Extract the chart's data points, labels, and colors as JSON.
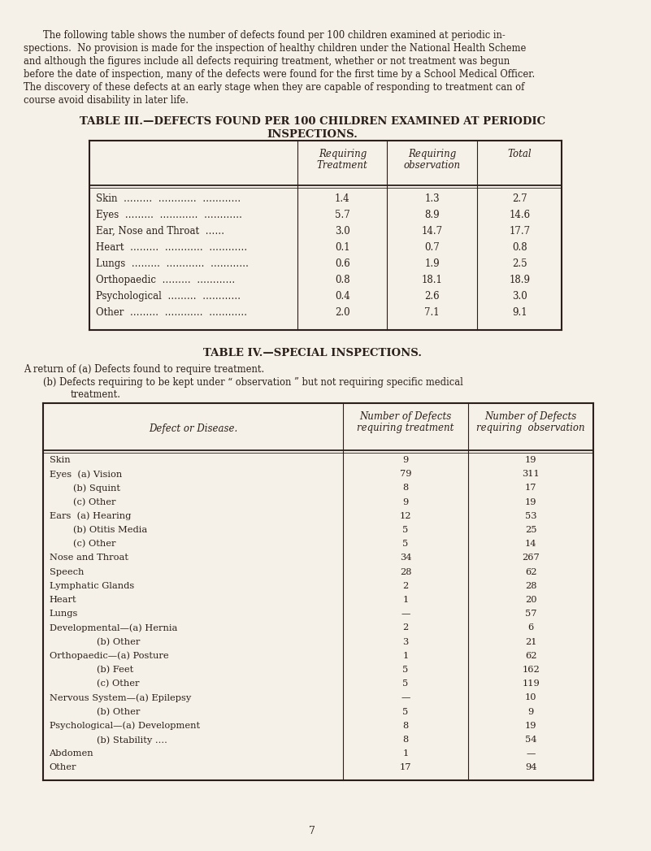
{
  "bg_color": "#f5f0e8",
  "text_color": "#2a1f1a",
  "intro_text": "The following table shows the number of defects found per 100 children examined at periodic in-\nspections.  No provision is made for the inspection of healthy children under the National Health Scheme\nand although the figures include all defects requiring treatment, whether or not treatment was begun\nbefore the date of inspection, many of the defects were found for the first time by a School Medical Officer.\nThe discovery of these defects at an early stage when they are capable of responding to treatment can of\ncourse avoid disability in later life.",
  "table3_title_line1": "TABLE III.—DEFECTS FOUND PER 100 CHILDREN EXAMINED AT PERIODIC",
  "table3_title_line2": "INSPECTIONS.",
  "table3_headers": [
    "Requiring\nTreatment",
    "Requiring\nobservation",
    "Total"
  ],
  "table3_rows": [
    [
      "Skin",
      "1.4",
      "1.3",
      "2.7"
    ],
    [
      "Eyes",
      "5.7",
      "8.9",
      "14.6"
    ],
    [
      "Ear, Nose and Throat",
      "3.0",
      "14.7",
      "17.7"
    ],
    [
      "Heart",
      "0.1",
      "0.7",
      "0.8"
    ],
    [
      "Lungs",
      "0.6",
      "1.9",
      "2.5"
    ],
    [
      "Orthopaedic",
      "0.8",
      "18.1",
      "18.9"
    ],
    [
      "Psychological",
      "0.4",
      "2.6",
      "3.0"
    ],
    [
      "Other",
      "2.0",
      "7.1",
      "9.1"
    ]
  ],
  "table4_title": "TABLE IV.—SPECIAL INSPECTIONS.",
  "table4_return_a": "A return of (a) Defects found to require treatment.",
  "table4_return_b1": "(b) Defects requiring to be kept under “ observation ” but not requiring specific medical",
  "table4_return_b2": "treatment.",
  "table4_headers": [
    "Defect or Disease.",
    "Number of Defects\nrequiring treatment",
    "Number of Defects\nrequiring  observation"
  ],
  "table4_rows": [
    [
      "Skin",
      "9",
      "19"
    ],
    [
      "Eyes  (a) Vision",
      "79",
      "311"
    ],
    [
      "        (b) Squint",
      "8",
      "17"
    ],
    [
      "        (c) Other",
      "9",
      "19"
    ],
    [
      "Ears  (a) Hearing",
      "12",
      "53"
    ],
    [
      "        (b) Otitis Media",
      "5",
      "25"
    ],
    [
      "        (c) Other",
      "5",
      "14"
    ],
    [
      "Nose and Throat",
      "34",
      "267"
    ],
    [
      "Speech",
      "28",
      "62"
    ],
    [
      "Lymphatic Glands",
      "2",
      "28"
    ],
    [
      "Heart",
      "1",
      "20"
    ],
    [
      "Lungs",
      "—",
      "57"
    ],
    [
      "Developmental—(a) Hernia",
      "2",
      "6"
    ],
    [
      "                (b) Other",
      "3",
      "21"
    ],
    [
      "Orthopaedic—(a) Posture",
      "1",
      "62"
    ],
    [
      "                (b) Feet",
      "5",
      "162"
    ],
    [
      "                (c) Other",
      "5",
      "119"
    ],
    [
      "Nervous System—(a) Epilepsy",
      "—",
      "10"
    ],
    [
      "                (b) Other",
      "5",
      "9"
    ],
    [
      "Psychological—(a) Development",
      "8",
      "19"
    ],
    [
      "                (b) Stability ….",
      "8",
      "54"
    ],
    [
      "Abdomen",
      "1",
      "—"
    ],
    [
      "Other",
      "17",
      "94"
    ]
  ],
  "page_number": "7"
}
